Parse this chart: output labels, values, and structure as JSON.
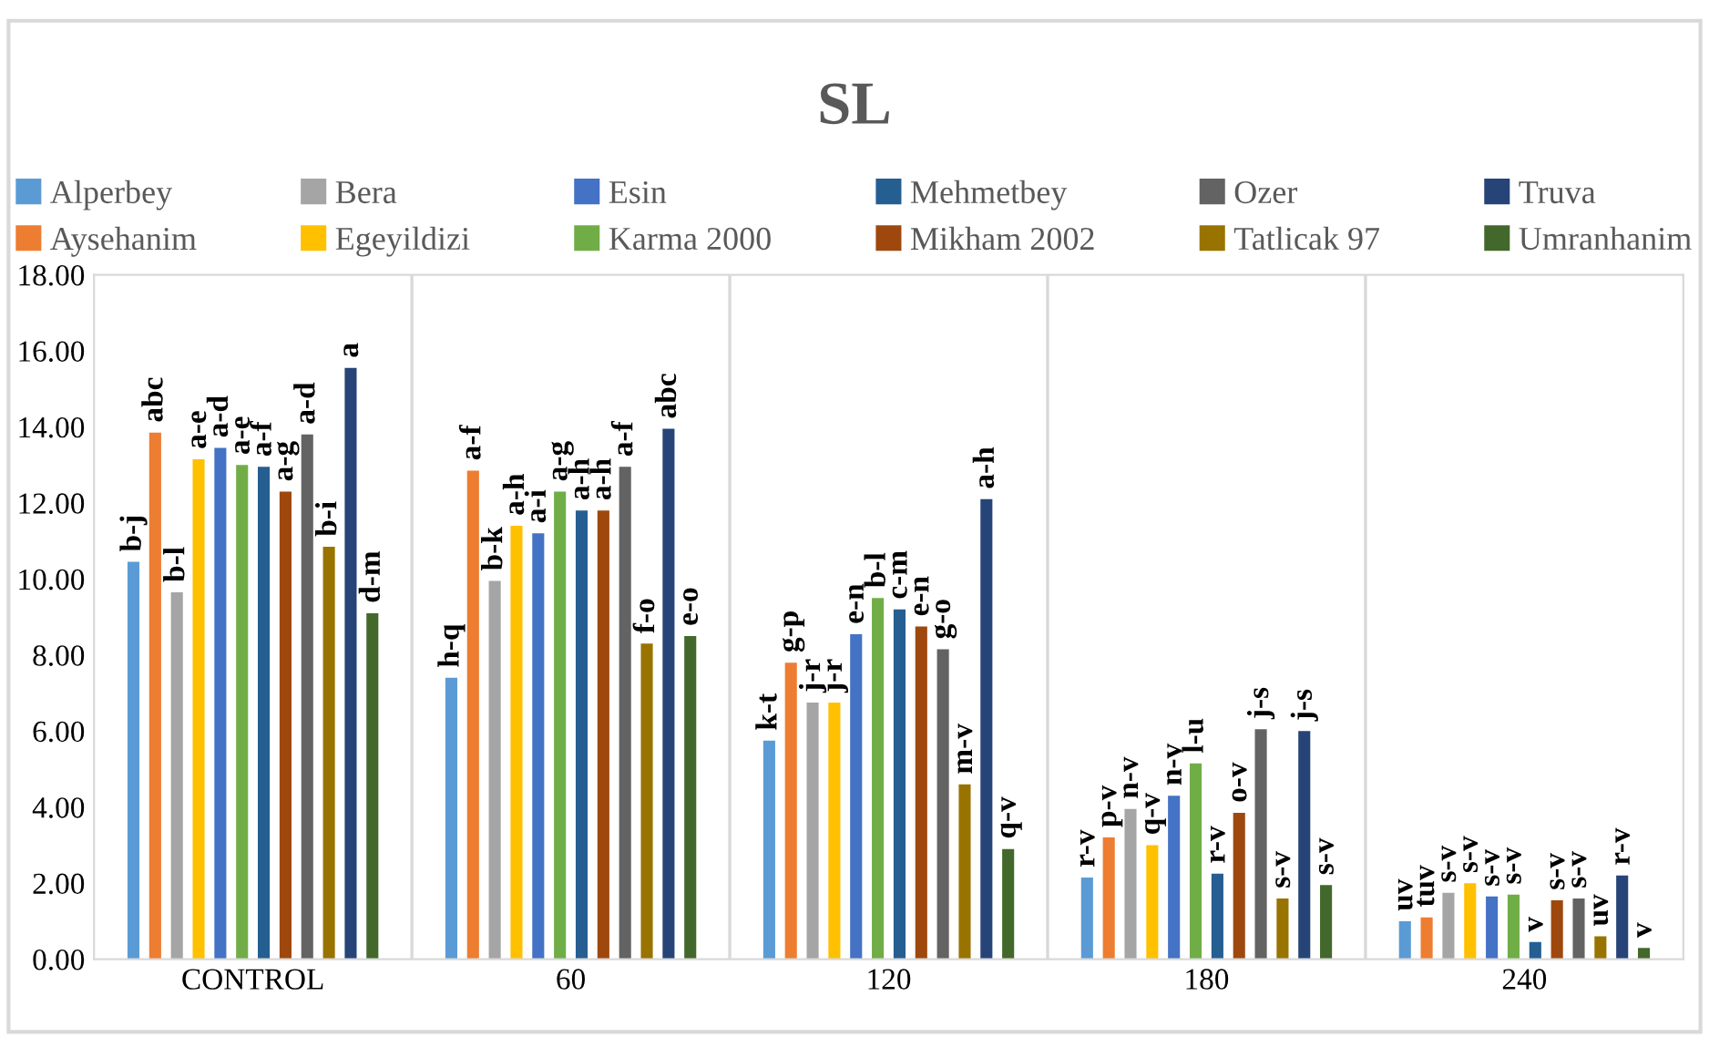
{
  "chart_data": {
    "type": "bar",
    "title": "SL",
    "categories": [
      "CONTROL",
      "60",
      "120",
      "180",
      "240"
    ],
    "series": [
      {
        "name": "Alperbey",
        "color": "#5b9bd5",
        "values": [
          10.45,
          7.4,
          5.75,
          2.15,
          1.0
        ],
        "value_labels": [
          "b-j",
          "h-q",
          "k-t",
          "r-v",
          "uv"
        ]
      },
      {
        "name": "Aysehanim",
        "color": "#ed7d31",
        "values": [
          13.85,
          12.85,
          7.8,
          3.2,
          1.1
        ],
        "value_labels": [
          "abc",
          "a-f",
          "g-p",
          "p-v",
          "tuv"
        ]
      },
      {
        "name": "Bera",
        "color": "#a5a5a5",
        "values": [
          9.65,
          9.95,
          6.75,
          3.95,
          1.75
        ],
        "value_labels": [
          "b-l",
          "b-k",
          "j-r",
          "n-v",
          "s-v"
        ]
      },
      {
        "name": "Egeyildizi",
        "color": "#ffc000",
        "values": [
          13.15,
          11.4,
          6.75,
          3.0,
          2.0
        ],
        "value_labels": [
          "a-e",
          "a-h",
          "j-r",
          "q-v",
          "s-v"
        ]
      },
      {
        "name": "Esin",
        "color": "#4472c4",
        "values": [
          13.45,
          11.2,
          8.55,
          4.3,
          1.65
        ],
        "value_labels": [
          "a-d",
          "a-i",
          "e-n",
          "n-v",
          "s-v"
        ]
      },
      {
        "name": "Karma 2000",
        "color": "#70ad47",
        "values": [
          13.0,
          12.3,
          9.5,
          5.15,
          1.7
        ],
        "value_labels": [
          "a-e",
          "a-g",
          "b-l",
          "l-u",
          "s-v"
        ]
      },
      {
        "name": "Mehmetbey",
        "color": "#255e91",
        "values": [
          12.95,
          11.8,
          9.2,
          2.25,
          0.45
        ],
        "value_labels": [
          "a-f",
          "a-h",
          "c-m",
          "r-v",
          "v"
        ]
      },
      {
        "name": "Mikham 2002",
        "color": "#9e480e",
        "values": [
          12.3,
          11.8,
          8.75,
          3.85,
          1.55
        ],
        "value_labels": [
          "a-g",
          "a-h",
          "e-n",
          "o-v",
          "s-v"
        ]
      },
      {
        "name": "Ozer",
        "color": "#636363",
        "values": [
          13.8,
          12.95,
          8.15,
          6.05,
          1.6
        ],
        "value_labels": [
          "a-d",
          "a-f",
          "g-o",
          "j-s",
          "s-v"
        ]
      },
      {
        "name": "Tatlicak 97",
        "color": "#997300",
        "values": [
          10.85,
          8.3,
          4.6,
          1.6,
          0.6
        ],
        "value_labels": [
          "b-i",
          "f-o",
          "m-v",
          "s-v",
          "uv"
        ]
      },
      {
        "name": "Truva",
        "color": "#264478",
        "values": [
          15.55,
          13.95,
          12.1,
          6.0,
          2.2
        ],
        "value_labels": [
          "a",
          "abc",
          "a-h",
          "j-s",
          "r-v"
        ]
      },
      {
        "name": "Umranhanim",
        "color": "#43682b",
        "values": [
          9.1,
          8.5,
          2.9,
          1.95,
          0.3
        ],
        "value_labels": [
          "d-m",
          "e-o",
          "q-v",
          "s-v",
          "v"
        ]
      }
    ],
    "ylim": [
      0,
      18
    ],
    "yticks": [
      {
        "value": 0,
        "label": "0.00"
      },
      {
        "value": 2,
        "label": "2.00"
      },
      {
        "value": 4,
        "label": "4.00"
      },
      {
        "value": 6,
        "label": "6.00"
      },
      {
        "value": 8,
        "label": "8.00"
      },
      {
        "value": 10,
        "label": "10.00"
      },
      {
        "value": 12,
        "label": "12.00"
      },
      {
        "value": 14,
        "label": "14.00"
      },
      {
        "value": 16,
        "label": "16.00"
      },
      {
        "value": 18,
        "label": "18.00"
      }
    ],
    "grid": false,
    "legend": "top"
  }
}
